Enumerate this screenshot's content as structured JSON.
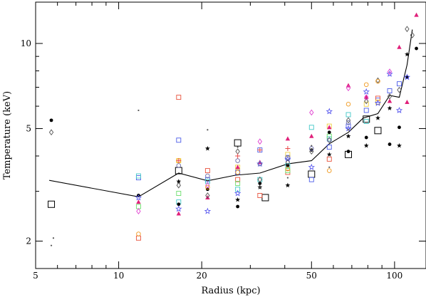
{
  "chart_data": {
    "type": "scatter",
    "xlabel": "Radius (kpc)",
    "ylabel": "Temperature (keV)",
    "x_scale": "log",
    "y_scale": "log",
    "xlim": [
      5,
      130
    ],
    "ylim": [
      1.6,
      14
    ],
    "x_tick_labels": [
      "5",
      "10",
      "20",
      "50",
      "100"
    ],
    "x_tick_values": [
      5,
      10,
      20,
      50,
      100
    ],
    "y_tick_labels": [
      "2",
      "5",
      "10"
    ],
    "y_tick_values": [
      2,
      5,
      10
    ],
    "grid": false,
    "legend": "none",
    "series": [
      {
        "kind": "line",
        "x": [
          5.6,
          11.8,
          16.5,
          21,
          26.5,
          32.5,
          41,
          50,
          58,
          68,
          77,
          87,
          96,
          104,
          111,
          116
        ],
        "y": [
          3.28,
          2.87,
          3.48,
          3.27,
          3.42,
          3.48,
          3.75,
          3.85,
          4.42,
          4.85,
          5.45,
          5.65,
          6.55,
          6.45,
          8.4,
          11.2
        ],
        "color": "#000000"
      },
      {
        "kind": "marker",
        "marker": "open-square-large",
        "color": "#000000",
        "x": [
          5.7,
          16.5,
          27,
          34,
          50,
          68,
          79,
          87
        ],
        "y": [
          2.7,
          3.55,
          4.45,
          2.85,
          3.45,
          4.05,
          5.4,
          4.92
        ]
      },
      {
        "kind": "marker",
        "marker": "open-square",
        "color": "#4a5be8",
        "x": [
          11.8,
          16.5,
          21,
          27,
          32.5,
          41,
          50,
          58,
          68,
          79,
          87,
          96,
          104
        ],
        "y": [
          3.35,
          4.55,
          3.3,
          3.5,
          4.2,
          3.95,
          3.3,
          4.3,
          5.1,
          5.8,
          6.3,
          6.8,
          7.2
        ]
      },
      {
        "kind": "marker",
        "marker": "open-square",
        "color": "#e8503a",
        "x": [
          11.8,
          16.5,
          21,
          27,
          32.5,
          41,
          58,
          87
        ],
        "y": [
          2.05,
          6.45,
          3.55,
          3.3,
          2.9,
          3.5,
          3.9,
          6.4
        ]
      },
      {
        "kind": "marker",
        "marker": "open-square",
        "color": "#42c8c8",
        "x": [
          11.8,
          16.5,
          21,
          27,
          32.5,
          41,
          50,
          58,
          68,
          79
        ],
        "y": [
          3.4,
          2.75,
          3.25,
          3.05,
          3.3,
          3.7,
          5.05,
          4.6,
          5.6,
          5.3
        ]
      },
      {
        "kind": "marker",
        "marker": "open-square",
        "color": "#6adf6a",
        "x": [
          11.8,
          16.5,
          27,
          41,
          58
        ],
        "y": [
          2.65,
          2.95,
          3.2,
          3.55,
          4.7
        ]
      },
      {
        "kind": "marker",
        "marker": "open-square",
        "color": "#f0d040",
        "x": [
          16.5,
          27,
          41,
          58,
          79,
          87
        ],
        "y": [
          3.85,
          3.65,
          4.05,
          5.1,
          6.1,
          6.2
        ]
      },
      {
        "kind": "marker",
        "marker": "filled-circle",
        "color": "#000000",
        "x": [
          5.7,
          11.8,
          16.5,
          21,
          27,
          32.5,
          41,
          50,
          58,
          68,
          79,
          96,
          104,
          111,
          120
        ],
        "y": [
          5.35,
          2.9,
          2.7,
          3.05,
          2.65,
          3.2,
          3.7,
          4.2,
          4.85,
          4.15,
          4.65,
          4.4,
          5.05,
          7.6,
          9.6
        ]
      },
      {
        "kind": "marker",
        "marker": "filled-star",
        "color": "#000000",
        "x": [
          16.5,
          21,
          27,
          32.5,
          41,
          58,
          68,
          79,
          87,
          96,
          104,
          111
        ],
        "y": [
          3.25,
          4.25,
          2.8,
          3.1,
          3.15,
          4.05,
          4.7,
          4.35,
          5.45,
          5.9,
          4.35,
          9.15
        ]
      },
      {
        "kind": "marker",
        "marker": "filled-triangle",
        "color": "#e0207a",
        "x": [
          11.8,
          16.5,
          21,
          27,
          32.5,
          41,
          50,
          58,
          68,
          79,
          96,
          104,
          111,
          120
        ],
        "y": [
          2.75,
          2.5,
          2.85,
          3.65,
          3.8,
          4.6,
          4.7,
          5.05,
          7.1,
          6.45,
          6.25,
          9.7,
          6.2,
          12.6
        ]
      },
      {
        "kind": "marker",
        "marker": "open-star",
        "color": "#5050ee",
        "x": [
          11.8,
          16.5,
          21,
          27,
          32.5,
          41,
          50,
          58,
          68,
          79,
          87,
          96,
          104,
          111
        ],
        "y": [
          2.85,
          2.6,
          2.55,
          2.95,
          3.75,
          3.9,
          3.65,
          5.75,
          5.0,
          6.75,
          6.15,
          7.8,
          5.8,
          7.6
        ]
      },
      {
        "kind": "marker",
        "marker": "open-diamond",
        "color": "#555555",
        "x": [
          5.7,
          16.5,
          21,
          27,
          32.5,
          41,
          50,
          58,
          68,
          79,
          87,
          96,
          104,
          111,
          116
        ],
        "y": [
          4.85,
          3.15,
          2.9,
          4.15,
          3.3,
          3.8,
          4.15,
          4.55,
          5.35,
          6.25,
          7.4,
          6.5,
          6.85,
          11.25,
          10.7
        ]
      },
      {
        "kind": "marker",
        "marker": "open-diamond",
        "color": "#e040d0",
        "x": [
          11.8,
          21,
          32.5,
          50,
          68,
          79,
          96
        ],
        "y": [
          2.55,
          3.15,
          4.5,
          5.7,
          6.95,
          6.45,
          7.95
        ]
      },
      {
        "kind": "marker",
        "marker": "open-circle",
        "color": "#f09a20",
        "x": [
          11.8,
          16.5,
          21,
          27,
          41,
          58,
          68,
          79,
          87
        ],
        "y": [
          2.12,
          3.85,
          3.1,
          3.5,
          3.6,
          3.55,
          6.1,
          7.15,
          7.35
        ]
      },
      {
        "kind": "marker",
        "marker": "open-circle",
        "color": "#6a6aa8",
        "x": [
          16.5,
          21,
          27,
          32.5,
          41,
          50,
          58,
          68
        ],
        "y": [
          3.7,
          3.4,
          3.85,
          3.75,
          3.95,
          4.25,
          4.55,
          5.25
        ]
      },
      {
        "kind": "marker",
        "marker": "plus",
        "color": "#e84a4a",
        "x": [
          16.5,
          27,
          32.5,
          41
        ],
        "y": [
          3.85,
          4.0,
          4.2,
          4.25
        ]
      },
      {
        "kind": "marker",
        "marker": "small-dot",
        "color": "#555555",
        "x": [
          5.7,
          5.8,
          11.8,
          21,
          27,
          32.5,
          41,
          50,
          58,
          68
        ],
        "y": [
          1.93,
          2.05,
          5.8,
          4.95,
          4.3,
          3.1,
          3.35,
          4.35,
          3.65,
          4.95
        ]
      }
    ]
  }
}
